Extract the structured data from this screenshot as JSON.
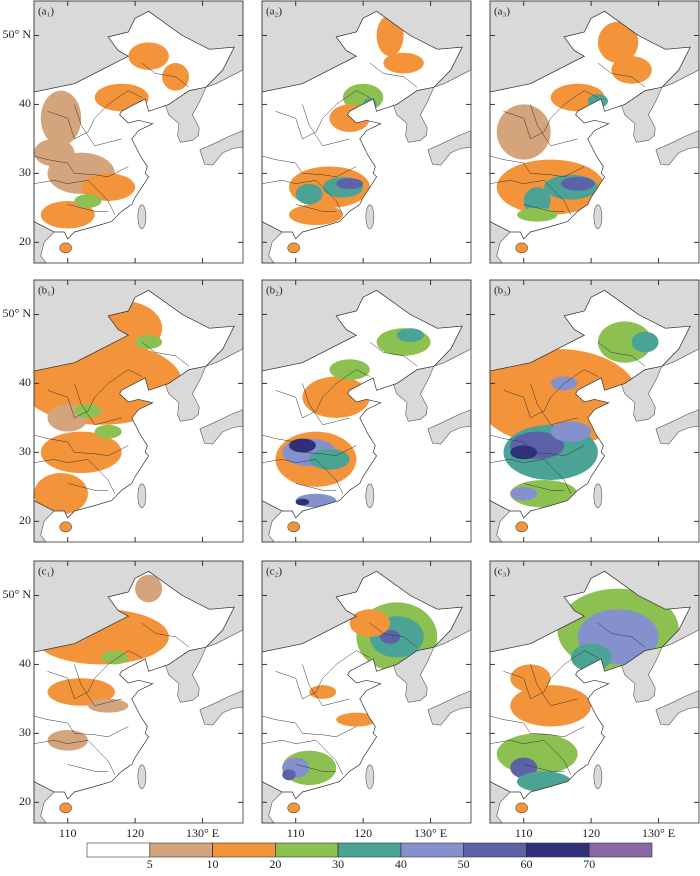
{
  "chart_data": {
    "type": "map",
    "panels": [
      {
        "label": "(a₁)"
      },
      {
        "label": "(a₂)"
      },
      {
        "label": "(a₃)"
      },
      {
        "label": "(b₁)"
      },
      {
        "label": "(b₂)"
      },
      {
        "label": "(b₃)"
      },
      {
        "label": "(c₁)"
      },
      {
        "label": "(c₂)"
      },
      {
        "label": "(c₃)"
      }
    ],
    "xlim": [
      105,
      136
    ],
    "ylim": [
      17,
      55
    ],
    "xticks": [
      110,
      120,
      {
        "value": 130,
        "label": "130° E"
      }
    ],
    "yticks": [
      20,
      30,
      40,
      {
        "value": 50,
        "label": "50° N"
      }
    ],
    "colorbar": {
      "levels": [
        5,
        10,
        20,
        30,
        40,
        50,
        60,
        70
      ],
      "colors": [
        "#ffffff",
        "#d4a47c",
        "#f4943a",
        "#8cc152",
        "#4aa394",
        "#8491cc",
        "#5b62a8",
        "#2f2f7a",
        "#8a68a8"
      ]
    }
  }
}
